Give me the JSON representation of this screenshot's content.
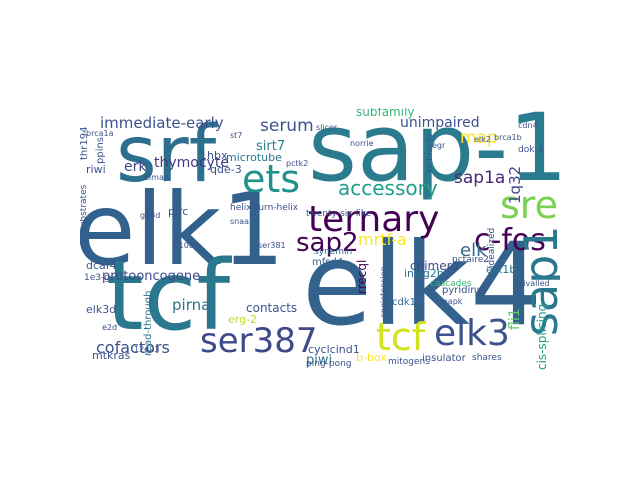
{
  "words": [
    {
      "text": "sap-1",
      "color": "#2b7b8e"
    },
    {
      "text": "srf",
      "color": "#2d6f8e"
    },
    {
      "text": "elk1",
      "color": "#33618d"
    },
    {
      "text": "elk4",
      "color": "#33628d"
    },
    {
      "text": "tcf",
      "color": "#2a788e"
    },
    {
      "text": "ternary",
      "color": "#440154"
    },
    {
      "text": "ets",
      "color": "#21918c"
    },
    {
      "text": "sre",
      "color": "#7ad151"
    },
    {
      "text": "c-fos",
      "color": "#440154"
    },
    {
      "text": "sap1",
      "color": "#2a788e"
    },
    {
      "text": "ser387",
      "color": "#3e4989"
    },
    {
      "text": "tcf",
      "color": "#d2e21b"
    },
    {
      "text": "elk3",
      "color": "#3b528b"
    },
    {
      "text": "sap2",
      "color": "#440154"
    },
    {
      "text": "accessory",
      "color": "#1f9e89"
    },
    {
      "text": "immediate-early",
      "color": "#3b528b"
    },
    {
      "text": "serum",
      "color": "#3b528b"
    },
    {
      "text": "sap1a",
      "color": "#482878"
    },
    {
      "text": "map",
      "color": "#fde725"
    },
    {
      "text": "unimpaired",
      "color": "#3b528b"
    },
    {
      "text": "subfamily",
      "color": "#35b779"
    },
    {
      "text": "mrtf-a",
      "color": "#fde725"
    },
    {
      "text": "elk",
      "color": "#31688e"
    },
    {
      "text": "1q32",
      "color": "#404688"
    },
    {
      "text": "fli1",
      "color": "#5ec962"
    },
    {
      "text": "sirt7",
      "color": "#26828e"
    },
    {
      "text": "microtube",
      "color": "#2a788e"
    },
    {
      "text": "thymocyte",
      "color": "#443983"
    },
    {
      "text": "erk",
      "color": "#404688"
    },
    {
      "text": "protooncogene",
      "color": "#3e4989"
    },
    {
      "text": "cofactors",
      "color": "#3b528b"
    },
    {
      "text": "contacts",
      "color": "#3b528b"
    },
    {
      "text": "pirna",
      "color": "#2c728e"
    },
    {
      "text": "piwi",
      "color": "#2c728e"
    },
    {
      "text": "cis-splicing",
      "color": "#1f9e89"
    },
    {
      "text": "elk1b",
      "color": "#2c728e"
    },
    {
      "text": "insig2b",
      "color": "#2c728e"
    },
    {
      "text": "chimera",
      "color": "#3e4989"
    },
    {
      "text": "cdk17",
      "color": "#31688e"
    },
    {
      "text": "rrecql",
      "color": "#440154"
    },
    {
      "text": "cyclcind1",
      "color": "#3b528b"
    },
    {
      "text": "erg-2",
      "color": "#b5de2b"
    },
    {
      "text": "mfsd4",
      "color": "#31688e"
    },
    {
      "text": "synemin",
      "color": "#31688e"
    },
    {
      "text": "twenty-six-like",
      "color": "#3b528b"
    },
    {
      "text": "helix-turn-helix",
      "color": "#3b528b"
    },
    {
      "text": "qde-3",
      "color": "#3b528b"
    },
    {
      "text": "1hbx",
      "color": "#3b528b"
    },
    {
      "text": "pirc",
      "color": "#3b528b"
    },
    {
      "text": "riwi",
      "color": "#3b528b"
    },
    {
      "text": "dcaf4",
      "color": "#3b528b"
    },
    {
      "text": "elk3d",
      "color": "#3b528b"
    },
    {
      "text": "mtkras",
      "color": "#3b528b"
    },
    {
      "text": "read-through",
      "color": "#2c728e"
    },
    {
      "text": "ping-pong",
      "color": "#3b528b"
    },
    {
      "text": "b-box",
      "color": "#fde725"
    },
    {
      "text": "mitogens",
      "color": "#3b528b"
    },
    {
      "text": "insulator",
      "color": "#3b528b"
    },
    {
      "text": "shares",
      "color": "#3b528b"
    },
    {
      "text": "pyridinyl",
      "color": "#3b528b"
    },
    {
      "text": "cascades",
      "color": "#35b779"
    },
    {
      "text": "pctaire2",
      "color": "#3b528b"
    },
    {
      "text": "idealized",
      "color": "#3b528b"
    },
    {
      "text": "rivalled",
      "color": "#3b528b"
    },
    {
      "text": "thr194",
      "color": "#3b528b"
    },
    {
      "text": "ppins",
      "color": "#3b528b"
    },
    {
      "text": "1e3-g",
      "color": "#3b528b"
    },
    {
      "text": "substrates",
      "color": "#3b528b"
    },
    {
      "text": "brca1a",
      "color": "#3b528b"
    },
    {
      "text": "slicer",
      "color": "#3b528b"
    },
    {
      "text": "norrie",
      "color": "#3b528b"
    },
    {
      "text": "pctk2",
      "color": "#3b528b"
    },
    {
      "text": "tortuosity",
      "color": "#3b528b"
    },
    {
      "text": "egr",
      "color": "#3b528b"
    },
    {
      "text": "dok-4",
      "color": "#3b528b"
    },
    {
      "text": "cdn4",
      "color": "#3b528b"
    },
    {
      "text": "brca1b",
      "color": "#3b528b"
    },
    {
      "text": "elk2",
      "color": "#3b528b"
    },
    {
      "text": "g13d",
      "color": "#3b528b"
    },
    {
      "text": "cl100",
      "color": "#3b528b"
    },
    {
      "text": "synn",
      "color": "#3b528b"
    },
    {
      "text": "mapk",
      "color": "#3b528b"
    },
    {
      "text": "angiotension",
      "color": "#3b528b"
    },
    {
      "text": "snaa",
      "color": "#3b528b"
    },
    {
      "text": "e2d",
      "color": "#3b528b"
    },
    {
      "text": "12q23",
      "color": "#3b528b"
    },
    {
      "text": "ser381",
      "color": "#3b528b"
    },
    {
      "text": "elmap",
      "color": "#3b528b"
    },
    {
      "text": "st7",
      "color": "#3b528b"
    }
  ]
}
